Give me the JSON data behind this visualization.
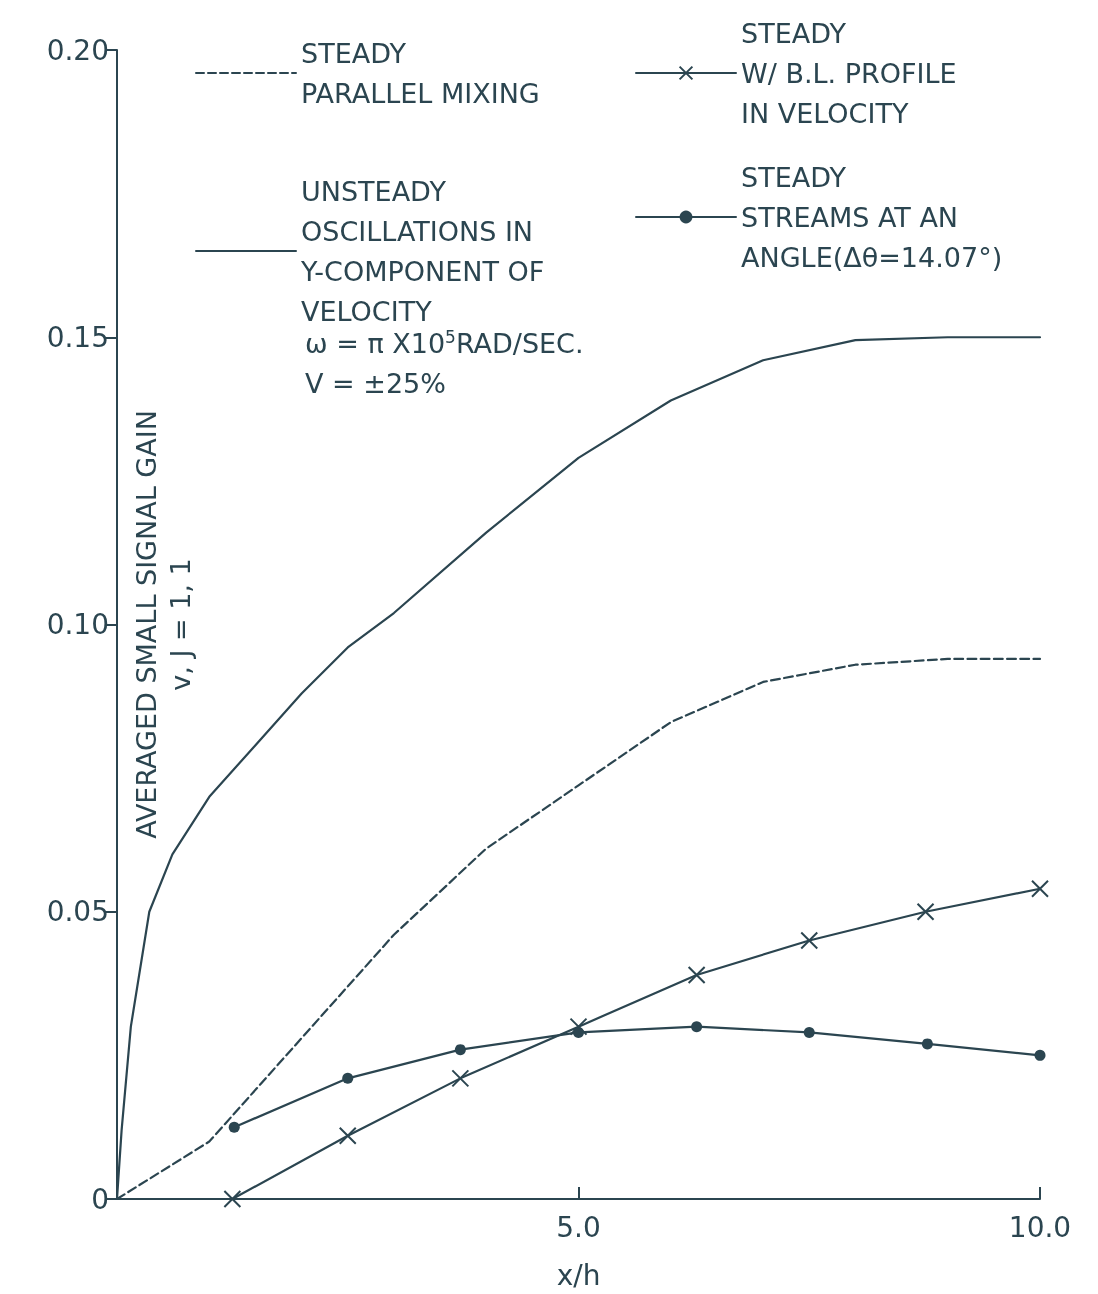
{
  "chart_data": {
    "type": "line",
    "xlabel": "x/h",
    "ylabel": "AVERAGED SMALL SIGNAL GAIN\nv, J = 1, 1",
    "annotations": [
      "ω = π X10$^{5}$RAD/SEC.",
      "V = ±25%"
    ],
    "series": [
      {
        "name": "STEADY\nPARALLEL MIXING",
        "color": "#2b4550",
        "line_style": "dashed",
        "marker": "none",
        "x": [
          0,
          1,
          2,
          3,
          4,
          5,
          6,
          7,
          8,
          9,
          10
        ],
        "values": [
          0,
          0.01,
          0.028,
          0.046,
          0.061,
          0.072,
          0.083,
          0.09,
          0.093,
          0.094,
          0.094
        ]
      },
      {
        "name": "UNSTEADY\nOSCILLATIONS IN\nY-COMPONENT OF\nVELOCITY",
        "color": "#2b4550",
        "line_style": "solid",
        "marker": "none",
        "x": [
          0,
          0.05,
          0.15,
          0.35,
          0.6,
          1,
          1.5,
          2,
          2.5,
          3,
          4,
          5,
          6,
          7,
          8,
          9,
          10
        ],
        "values": [
          0,
          0.012,
          0.03,
          0.05,
          0.06,
          0.07,
          0.079,
          0.088,
          0.096,
          0.102,
          0.116,
          0.129,
          0.139,
          0.146,
          0.1495,
          0.15,
          0.15
        ]
      },
      {
        "name": "STEADY\nW/ B.L. PROFILE\nIN VELOCITY",
        "color": "#2b4550",
        "line_style": "solid",
        "marker": "cross",
        "x": [
          1.25,
          2.5,
          3.72,
          5,
          6.28,
          7.5,
          8.76,
          10
        ],
        "values": [
          0,
          0.011,
          0.021,
          0.03,
          0.039,
          0.045,
          0.05,
          0.054
        ]
      },
      {
        "name": "STEADY\nSTREAMS AT AN\nANGLE(Δθ=14.07°)",
        "color": "#2b4550",
        "line_style": "solid",
        "marker": "circle",
        "x": [
          1.27,
          2.5,
          3.72,
          5,
          6.28,
          7.5,
          8.78,
          10
        ],
        "values": [
          0.0125,
          0.021,
          0.026,
          0.029,
          0.03,
          0.029,
          0.027,
          0.025
        ]
      }
    ],
    "xlim": [
      0,
      10
    ],
    "xticks": [
      {
        "value": 0,
        "label": null
      },
      {
        "value": 5,
        "label": "5.0"
      },
      {
        "value": 10,
        "label": "10.0"
      }
    ],
    "ylim": [
      0,
      0.2
    ],
    "yticks": [
      {
        "value": 0,
        "label": "0"
      },
      0.05,
      {
        "value": 0.1,
        "label": "0.10"
      },
      0.15,
      {
        "value": 0.2,
        "label": "0.20"
      }
    ],
    "grid": false,
    "legend": "top"
  }
}
